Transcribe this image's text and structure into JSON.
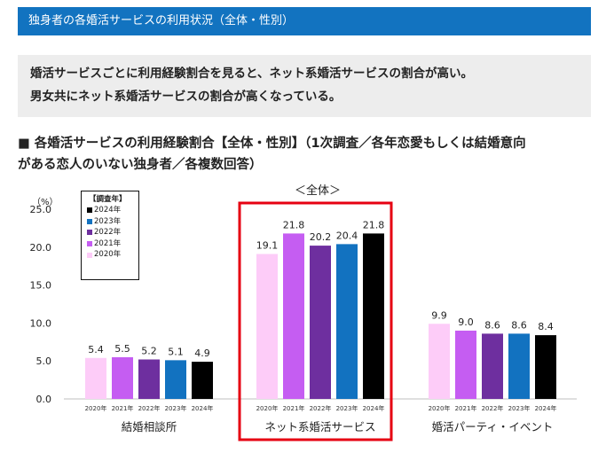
{
  "header": {
    "title": "独身者の各婚活サービスの利用状況（全体・性別）"
  },
  "summary": {
    "lines": [
      "婚活サービスごとに利用経験割合を見ると、ネット系婚活サービスの割合が高い。",
      "男女共にネット系婚活サービスの割合が高くなっている。"
    ]
  },
  "section": {
    "lines": [
      "■ 各婚活サービスの利用経験割合【全体・性別】（1次調査／各年恋愛もしくは結婚意向",
      "がある恋人のいない独身者／各複数回答）"
    ]
  },
  "chart_data": {
    "type": "bar",
    "title": "＜全体＞",
    "ylabel": "（%）",
    "ylim": [
      0,
      25
    ],
    "y_ticks": [
      "0.0",
      "5.0",
      "10.0",
      "15.0",
      "20.0",
      "25.0"
    ],
    "legend": {
      "title": "【調査年】",
      "items": [
        {
          "name": "2024年",
          "color": "#000000"
        },
        {
          "name": "2023年",
          "color": "#1272c0"
        },
        {
          "name": "2022年",
          "color": "#6e2f9f"
        },
        {
          "name": "2021年",
          "color": "#c55df2"
        },
        {
          "name": "2020年",
          "color": "#fdccf8"
        }
      ]
    },
    "years": [
      "2020年",
      "2021年",
      "2022年",
      "2023年",
      "2024年"
    ],
    "year_colors": [
      "#fdccf8",
      "#c55df2",
      "#6e2f9f",
      "#1272c0",
      "#000000"
    ],
    "groups": [
      {
        "name": "結婚相談所",
        "values": [
          5.4,
          5.5,
          5.2,
          5.1,
          4.9
        ],
        "labels": [
          "5.4",
          "5.5",
          "5.2",
          "5.1",
          "4.9"
        ],
        "highlighted": false
      },
      {
        "name": "ネット系婚活サービス",
        "values": [
          19.1,
          21.8,
          20.2,
          20.4,
          21.8
        ],
        "labels": [
          "19.1",
          "21.8",
          "20.2",
          "20.4",
          "21.8"
        ],
        "highlighted": true
      },
      {
        "name": "婚活パーティ・イベント",
        "values": [
          9.9,
          9.0,
          8.6,
          8.6,
          8.4
        ],
        "labels": [
          "9.9",
          "9.0",
          "8.6",
          "8.6",
          "8.4"
        ],
        "highlighted": false
      }
    ],
    "highlight_color": "#e60012"
  }
}
